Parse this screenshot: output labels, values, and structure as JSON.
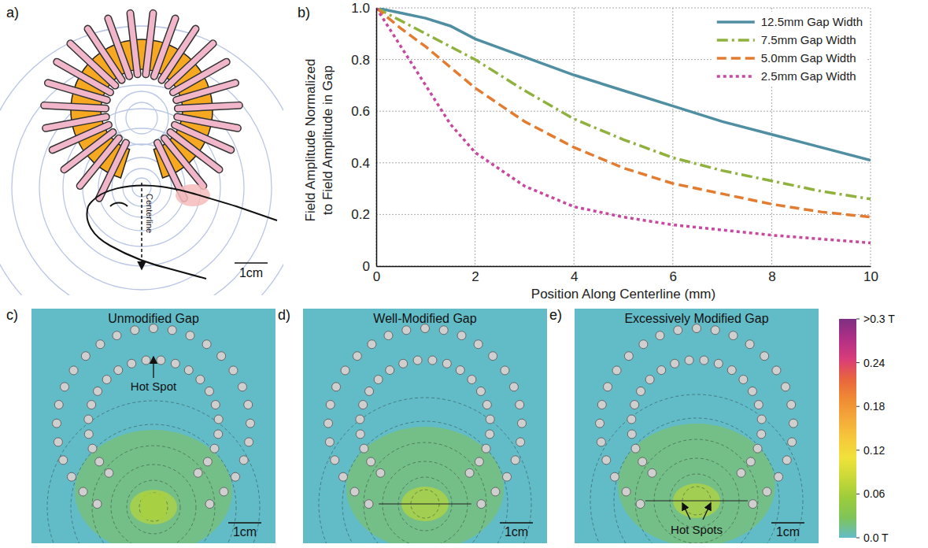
{
  "chart_data": {
    "type": "line",
    "xlabel": "Position Along Centerline (mm)",
    "ylabel": "Field Amplitude Normalized to Field Amplitude in Gap",
    "x": [
      0,
      0.5,
      1,
      1.5,
      2,
      3,
      4,
      5,
      6,
      7,
      8,
      9,
      10
    ],
    "series": [
      {
        "name": "12.5mm Gap Width",
        "color": "#4f8fa1",
        "line_style": "solid",
        "values": [
          1.0,
          0.98,
          0.96,
          0.93,
          0.88,
          0.81,
          0.74,
          0.68,
          0.62,
          0.56,
          0.51,
          0.46,
          0.41
        ]
      },
      {
        "name": "7.5mm Gap Width",
        "color": "#8fb23f",
        "line_style": "dash-dot",
        "values": [
          1.0,
          0.95,
          0.9,
          0.85,
          0.8,
          0.68,
          0.57,
          0.49,
          0.42,
          0.37,
          0.33,
          0.29,
          0.26
        ]
      },
      {
        "name": "5.0mm Gap Width",
        "color": "#e37c31",
        "line_style": "dashed",
        "values": [
          1.0,
          0.92,
          0.85,
          0.77,
          0.69,
          0.56,
          0.46,
          0.38,
          0.32,
          0.28,
          0.24,
          0.21,
          0.19
        ]
      },
      {
        "name": "2.5mm Gap Width",
        "color": "#c9489f",
        "line_style": "dotted",
        "values": [
          1.0,
          0.85,
          0.7,
          0.55,
          0.44,
          0.31,
          0.23,
          0.19,
          0.16,
          0.14,
          0.12,
          0.105,
          0.09
        ]
      }
    ],
    "xlim": [
      0,
      10
    ],
    "xticks": [
      0,
      2,
      4,
      6,
      8,
      10
    ],
    "ylim": [
      0,
      1
    ],
    "yticks": [
      0,
      0.2,
      0.4,
      0.6,
      0.8,
      {
        "value": 1,
        "label": "1.0"
      }
    ],
    "grid": true,
    "legend": "upper right"
  },
  "panels": [
    {
      "label": "a)",
      "centerline": "Centerline",
      "scale_bar": "1cm"
    },
    {
      "label": "b)"
    },
    {
      "label": "c)",
      "title": "Unmodified Gap",
      "annotation": "Hot Spot",
      "scale_bar": "1cm"
    },
    {
      "label": "d)",
      "title": "Well-Modified Gap",
      "scale_bar": "1cm"
    },
    {
      "label": "e)",
      "title": "Excessively Modified Gap",
      "annotation": "Hot Spots",
      "scale_bar": "1cm"
    }
  ],
  "colorbar": {
    "range": [
      0,
      0.3
    ],
    "ticks": [
      {
        "value": 0.3,
        "label": ">0.3 T"
      },
      0.24,
      0.18,
      0.12,
      0.06,
      {
        "value": 0,
        "label": "0.0 T"
      }
    ],
    "colors": [
      "#62bcc8",
      "#7fc45a",
      "#9ccc3a",
      "#c8d838",
      "#f0e23a",
      "#f6c83a",
      "#f4a93a",
      "#ef8a33",
      "#e8643e",
      "#d83c7a",
      "#b02f86",
      "#7e2f82"
    ]
  }
}
